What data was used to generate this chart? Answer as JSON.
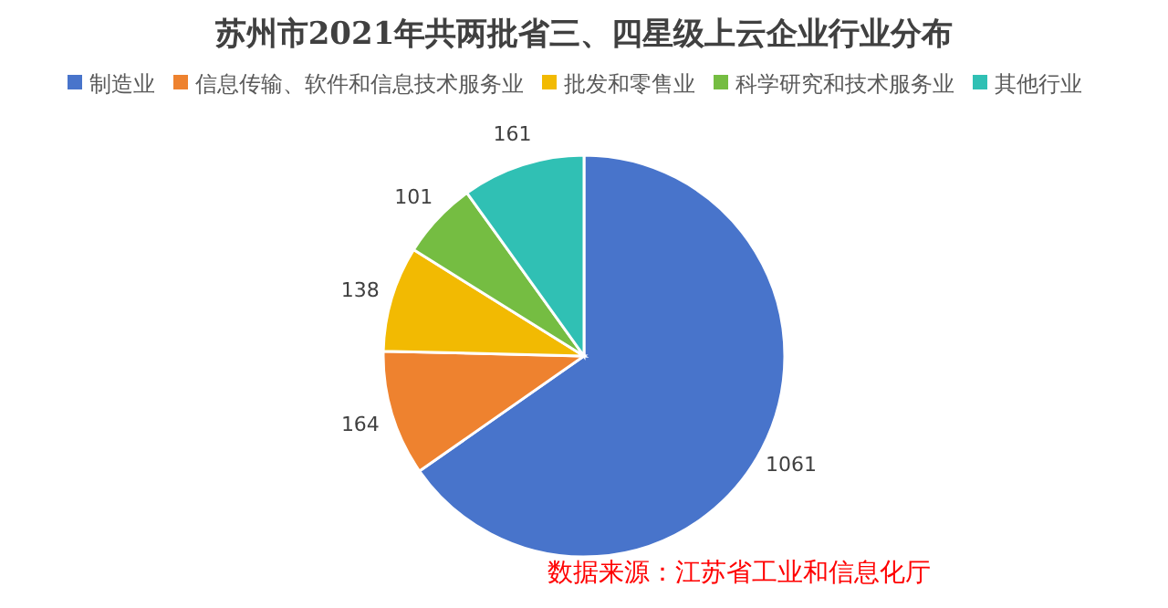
{
  "chart_data": {
    "type": "pie",
    "title": "苏州市2021年共两批省三、四星级上云企业行业分布",
    "categories": [
      "制造业",
      "信息传输、软件和信息技术服务业",
      "批发和零售业",
      "科学研究和技术服务业",
      "其他行业"
    ],
    "values": [
      1061,
      164,
      138,
      101,
      161
    ],
    "colors": [
      "#4874cb",
      "#ee822f",
      "#f2ba02",
      "#75bd42",
      "#30c0b4"
    ],
    "data_labels": true,
    "legend": "top",
    "annotations": [
      "数据来源：江苏省工业和信息化厅"
    ]
  }
}
